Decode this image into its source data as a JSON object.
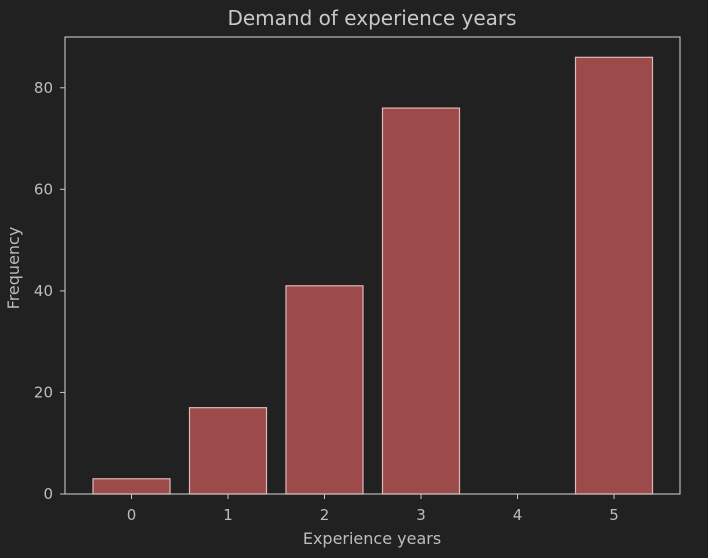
{
  "chart_data": {
    "type": "bar",
    "title": "Demand of experience years",
    "xlabel": "Experience years",
    "ylabel": "Frequency",
    "categories": [
      "0",
      "1",
      "2",
      "3",
      "4",
      "5"
    ],
    "values": [
      3,
      17,
      41,
      76,
      0,
      86
    ],
    "x_ticks": [
      "0",
      "1",
      "2",
      "3",
      "4",
      "5"
    ],
    "y_ticks": [
      "0",
      "20",
      "40",
      "60",
      "80"
    ],
    "y_tick_values": [
      0,
      20,
      40,
      60,
      80
    ],
    "ylim": [
      0,
      90
    ],
    "grid": false,
    "colors": {
      "background": "#212121",
      "bar_fill": "#9c4a4a",
      "bar_edge": "#e0b8b8",
      "axes": "#c7c7c7",
      "text": "#bdbdbd"
    }
  }
}
